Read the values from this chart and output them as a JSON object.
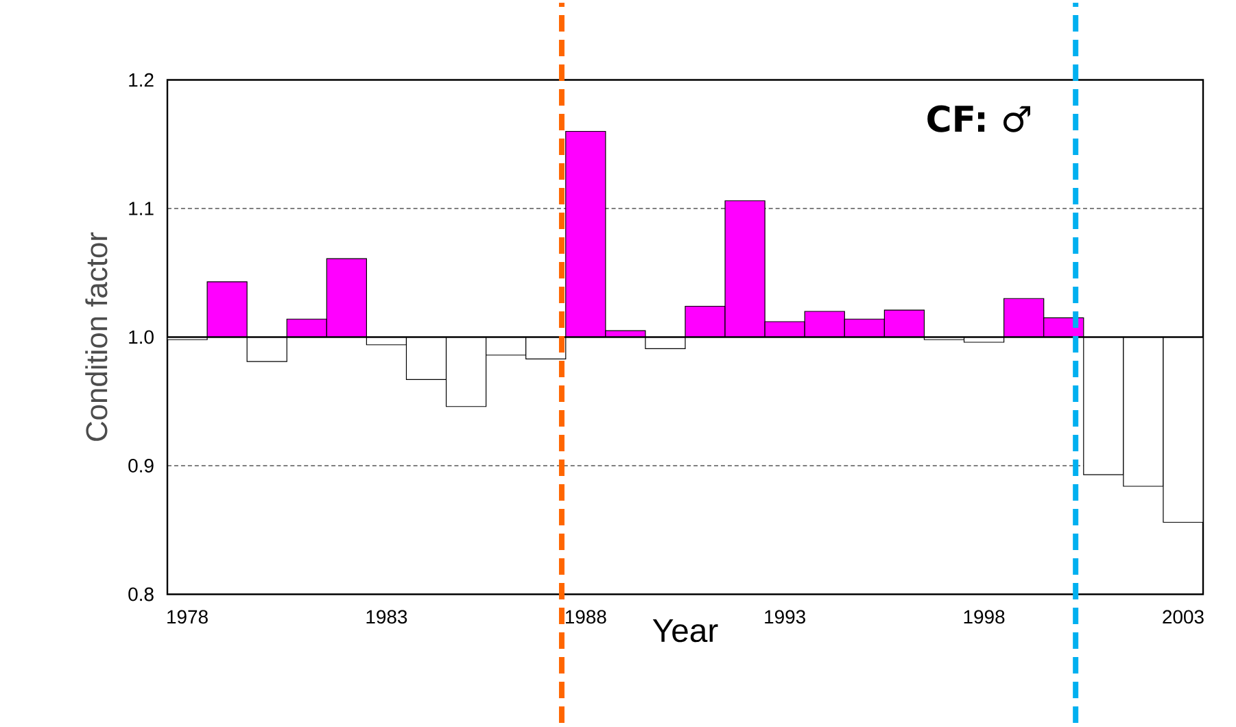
{
  "chart_data": {
    "type": "bar",
    "xlabel": "Year",
    "ylabel": "Condition factor",
    "annotations": [
      "CF:  ♂"
    ],
    "x": [
      1978,
      1979,
      1980,
      1981,
      1982,
      1983,
      1984,
      1985,
      1986,
      1987,
      1988,
      1989,
      1990,
      1991,
      1992,
      1993,
      1994,
      1995,
      1996,
      1997,
      1998,
      1999,
      2000,
      2001,
      2002,
      2003
    ],
    "base": [
      1,
      1,
      1,
      1,
      1,
      1,
      1,
      1,
      1,
      1,
      1,
      1,
      1,
      1,
      1,
      1,
      1,
      1,
      1,
      1,
      1,
      1,
      1,
      1,
      1,
      1
    ],
    "values": [
      -0.002,
      0.043,
      -0.019,
      0.014,
      0.061,
      -0.006,
      -0.033,
      -0.054,
      -0.014,
      -0.017,
      0.16,
      0.005,
      -0.009,
      0.024,
      0.106,
      0.012,
      0.02,
      0.014,
      0.021,
      -0.002,
      -0.004,
      0.03,
      0.015,
      -0.107,
      -0.116,
      -0.144
    ],
    "colors": [
      "#ffffff",
      "#ff00ff",
      "#ffffff",
      "#ff00ff",
      "#ff00ff",
      "#ffffff",
      "#ffffff",
      "#ffffff",
      "#ffffff",
      "#ffffff",
      "#ff00ff",
      "#ff00ff",
      "#ffffff",
      "#ff00ff",
      "#ff00ff",
      "#ff00ff",
      "#ff00ff",
      "#ff00ff",
      "#ff00ff",
      "#ffffff",
      "#ffffff",
      "#ff00ff",
      "#ff00ff",
      "#ffffff",
      "#ffffff",
      "#ffffff"
    ],
    "xlim": [
      1977.5,
      2003.5
    ],
    "xticks": [
      1978,
      1983,
      1988,
      1993,
      1998,
      2003
    ],
    "ylim": [
      0.8,
      1.2
    ],
    "yticks": [
      0.8,
      0.9,
      {
        "value": 1.0,
        "label": "1.0"
      },
      1.1,
      1.2
    ],
    "grid": "y",
    "ref_lines": [
      {
        "axis": "y",
        "value": 1.0,
        "color": "#000000",
        "line_style": "solid"
      },
      {
        "axis": "x",
        "value": 1987.4,
        "color": "#ff6600",
        "line_style": "dashed"
      },
      {
        "axis": "x",
        "value": 2000.3,
        "color": "#00b0f0",
        "line_style": "dashed"
      }
    ]
  }
}
